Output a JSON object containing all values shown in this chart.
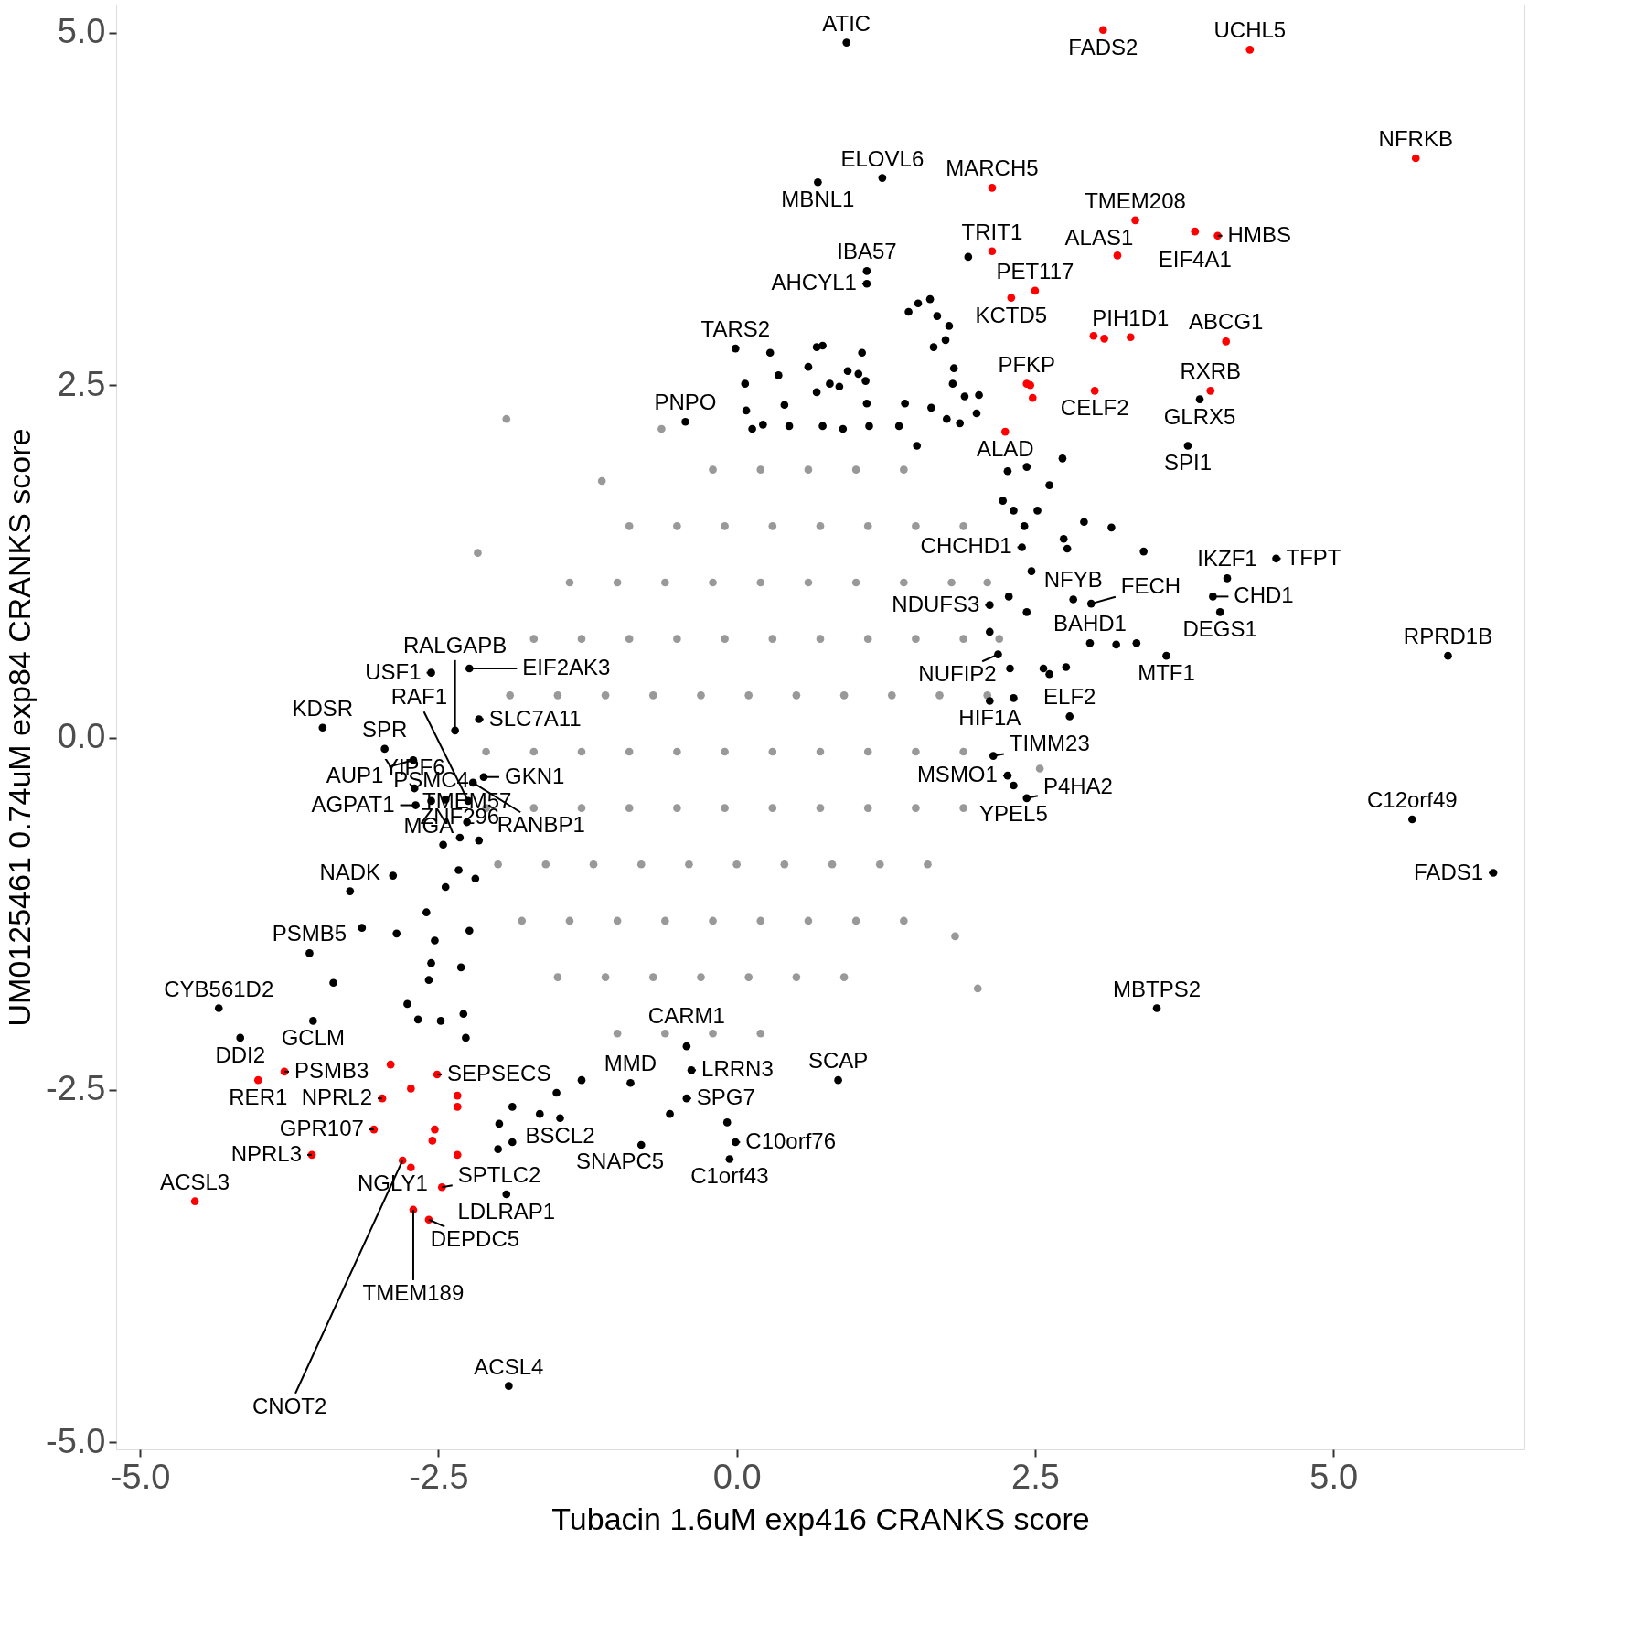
{
  "chart_data": {
    "type": "scatter",
    "xlabel": "Tubacin 1.6uM exp416 CRANKS score",
    "ylabel": "UM0125461 0.74uM exp84 CRANKS score",
    "xlim": [
      -5.2,
      6.6
    ],
    "ylim": [
      -5.05,
      5.2
    ],
    "xticks": [
      {
        "value": -5,
        "label": "-5.0"
      },
      {
        "value": -2.5,
        "label": "-2.5"
      },
      {
        "value": 0,
        "label": "0.0"
      },
      {
        "value": 2.5,
        "label": "2.5"
      },
      {
        "value": 5,
        "label": "5.0"
      }
    ],
    "yticks": [
      {
        "value": -5,
        "label": "-5.0"
      },
      {
        "value": -2.5,
        "label": "-2.5"
      },
      {
        "value": 0,
        "label": "0.0"
      },
      {
        "value": 2.5,
        "label": "2.5"
      },
      {
        "value": 5,
        "label": "5.0"
      }
    ],
    "grid": false,
    "marker": "circle",
    "series": [
      {
        "color": "#999999",
        "x": [
          -0.2,
          0.2,
          0.6,
          1.0,
          1.4,
          -0.9,
          -0.5,
          -0.1,
          0.3,
          0.7,
          1.1,
          1.5,
          1.9,
          -1.4,
          -1.0,
          -0.6,
          -0.2,
          0.2,
          0.6,
          1.0,
          1.4,
          1.8,
          2.1,
          -1.7,
          -1.3,
          -0.9,
          -0.5,
          -0.1,
          0.3,
          0.7,
          1.1,
          1.5,
          1.9,
          2.2,
          -1.9,
          -1.5,
          -1.1,
          -0.7,
          -0.3,
          0.1,
          0.5,
          0.9,
          1.3,
          1.7,
          2.1,
          -2.1,
          -1.7,
          -1.3,
          -0.9,
          -0.5,
          -0.1,
          0.3,
          0.7,
          1.1,
          1.5,
          1.9,
          -2.1,
          -1.7,
          -1.3,
          -0.9,
          -0.5,
          -0.1,
          0.3,
          0.7,
          1.1,
          1.5,
          1.9,
          -2.0,
          -1.6,
          -1.2,
          -0.8,
          -0.4,
          0.0,
          0.4,
          0.8,
          1.2,
          1.6,
          -1.8,
          -1.4,
          -1.0,
          -0.6,
          -0.2,
          0.2,
          0.6,
          1.0,
          1.4,
          -1.5,
          -1.1,
          -0.7,
          -0.3,
          0.1,
          0.5,
          0.9,
          -1.0,
          -0.6,
          -0.2,
          0.2,
          -1.93,
          -2.17,
          2.02,
          2.54,
          1.83,
          -1.13,
          -0.63
        ],
        "values": [
          1.9,
          1.9,
          1.9,
          1.9,
          1.9,
          1.5,
          1.5,
          1.5,
          1.5,
          1.5,
          1.5,
          1.5,
          1.5,
          1.1,
          1.1,
          1.1,
          1.1,
          1.1,
          1.1,
          1.1,
          1.1,
          1.1,
          1.1,
          0.7,
          0.7,
          0.7,
          0.7,
          0.7,
          0.7,
          0.7,
          0.7,
          0.7,
          0.7,
          0.7,
          0.3,
          0.3,
          0.3,
          0.3,
          0.3,
          0.3,
          0.3,
          0.3,
          0.3,
          0.3,
          0.3,
          -0.1,
          -0.1,
          -0.1,
          -0.1,
          -0.1,
          -0.1,
          -0.1,
          -0.1,
          -0.1,
          -0.1,
          -0.1,
          -0.5,
          -0.5,
          -0.5,
          -0.5,
          -0.5,
          -0.5,
          -0.5,
          -0.5,
          -0.5,
          -0.5,
          -0.5,
          -0.9,
          -0.9,
          -0.9,
          -0.9,
          -0.9,
          -0.9,
          -0.9,
          -0.9,
          -0.9,
          -0.9,
          -1.3,
          -1.3,
          -1.3,
          -1.3,
          -1.3,
          -1.3,
          -1.3,
          -1.3,
          -1.3,
          -1.7,
          -1.7,
          -1.7,
          -1.7,
          -1.7,
          -1.7,
          -1.7,
          -2.1,
          -2.1,
          -2.1,
          -2.1,
          2.26,
          1.31,
          -1.78,
          -0.22,
          -1.41,
          1.82,
          2.19
        ]
      },
      {
        "color": "#000000",
        "x": [
          0.92,
          1.22,
          0.68,
          1.09,
          1.09,
          1.94,
          -0.01,
          -0.43,
          3.88,
          3.78,
          4.11,
          4.52,
          3.99,
          2.82,
          2.97,
          4.05,
          3.6,
          5.96,
          2.96,
          2.79,
          2.15,
          2.27,
          2.43,
          2.32,
          5.66,
          6.34,
          3.52,
          0.85,
          -0.01,
          -0.06,
          -0.08,
          -0.42,
          -0.38,
          -0.42,
          -0.8,
          -0.56,
          -1.48,
          -1.93,
          -1.91,
          -4.16,
          -4.34,
          -3.55,
          -3.58,
          -3.24,
          -2.69,
          -2.56,
          -2.7,
          -2.44,
          -2.95,
          -3.47,
          -2.56,
          -2.71,
          -2.24,
          -2.16,
          -2.36,
          -2.12,
          -2.21,
          -2.25,
          -2.26,
          -2.32,
          1.52,
          1.62,
          1.68,
          1.44,
          1.78,
          1.65,
          1.82,
          1.75,
          1.81,
          1.91,
          2.03,
          2.01,
          1.76,
          1.87,
          1.63,
          1.41,
          1.36,
          1.51,
          1.11,
          1.09,
          1.08,
          0.93,
          1.02,
          0.86,
          0.67,
          0.72,
          0.78,
          0.67,
          0.72,
          0.89,
          1.05,
          0.6,
          0.4,
          0.35,
          0.28,
          0.07,
          0.08,
          0.13,
          0.22,
          0.44,
          2.27,
          2.43,
          2.73,
          2.62,
          2.52,
          2.41,
          2.23,
          2.32,
          2.39,
          2.74,
          2.77,
          2.91,
          3.14,
          3.41,
          2.47,
          2.28,
          2.12,
          2.43,
          2.12,
          2.19,
          2.29,
          2.57,
          2.76,
          3.18,
          3.35,
          2.12,
          2.32,
          2.62,
          -3.14,
          -2.85,
          -2.88,
          -2.76,
          -2.67,
          -2.58,
          -2.48,
          -2.27,
          -2.29,
          -2.53,
          -2.56,
          -2.31,
          -2.24,
          -2.6,
          -2.44,
          -2.33,
          -2.19,
          -2.46,
          -2.16,
          -1.65,
          -1.99,
          -2.0,
          -1.88,
          -1.88,
          -1.51,
          -1.3,
          -0.89,
          -3.38
        ],
        "values": [
          4.93,
          3.97,
          3.94,
          3.31,
          3.22,
          3.41,
          2.76,
          2.24,
          2.4,
          2.07,
          1.13,
          1.27,
          1.0,
          0.98,
          0.95,
          0.89,
          0.58,
          0.58,
          0.67,
          0.15,
          -0.13,
          -0.27,
          -0.43,
          -0.34,
          -0.58,
          -0.96,
          -1.92,
          -2.43,
          -2.87,
          -2.99,
          -2.73,
          -2.56,
          -2.36,
          -2.19,
          -2.89,
          -2.67,
          -2.7,
          -3.24,
          -4.6,
          -2.13,
          -1.92,
          -2.01,
          -1.53,
          -1.09,
          -0.48,
          -0.45,
          -0.36,
          -0.44,
          -0.08,
          0.07,
          0.46,
          -0.16,
          0.49,
          0.13,
          0.05,
          -0.28,
          -0.32,
          -0.45,
          -0.6,
          -0.71,
          3.08,
          3.11,
          2.99,
          3.02,
          2.92,
          2.77,
          2.62,
          2.82,
          2.51,
          2.42,
          2.43,
          2.3,
          2.26,
          2.23,
          2.34,
          2.37,
          2.21,
          2.07,
          2.21,
          2.37,
          2.53,
          2.6,
          2.58,
          2.49,
          2.77,
          2.78,
          2.51,
          2.45,
          2.21,
          2.19,
          2.73,
          2.63,
          2.36,
          2.57,
          2.73,
          2.51,
          2.32,
          2.19,
          2.22,
          2.21,
          1.89,
          1.92,
          1.98,
          1.79,
          1.61,
          1.5,
          1.68,
          1.61,
          1.35,
          1.41,
          1.34,
          1.53,
          1.49,
          1.32,
          1.18,
          1.0,
          0.94,
          0.89,
          0.75,
          0.59,
          0.49,
          0.49,
          0.5,
          0.66,
          0.67,
          0.26,
          0.28,
          0.45,
          -1.35,
          -1.39,
          -0.98,
          -1.89,
          -2.0,
          -1.72,
          -2.01,
          -2.13,
          -1.96,
          -1.44,
          -1.6,
          -1.63,
          -1.37,
          -1.24,
          -1.06,
          -0.94,
          -1.0,
          -0.76,
          -0.73,
          -2.67,
          -2.74,
          -2.92,
          -2.87,
          -2.62,
          -2.52,
          -2.43,
          -2.45,
          -1.74
        ]
      },
      {
        "color": "#ff0000",
        "x": [
          3.07,
          4.3,
          5.69,
          2.14,
          3.34,
          3.84,
          4.03,
          2.14,
          3.19,
          2.3,
          2.5,
          2.99,
          3.08,
          3.3,
          4.1,
          2.43,
          2.46,
          2.48,
          3.0,
          3.97,
          2.25,
          -4.01,
          -3.79,
          -2.9,
          -2.51,
          -2.97,
          -2.73,
          -2.34,
          -2.34,
          -3.04,
          -2.53,
          -2.55,
          -3.56,
          -2.34,
          -2.8,
          -2.73,
          -2.47,
          -4.54,
          -2.71,
          -2.58
        ],
        "values": [
          5.02,
          4.88,
          4.11,
          3.9,
          3.67,
          3.59,
          3.56,
          3.45,
          3.42,
          3.12,
          3.17,
          2.85,
          2.83,
          2.84,
          2.81,
          2.51,
          2.5,
          2.41,
          2.46,
          2.46,
          2.17,
          -2.43,
          -2.37,
          -2.32,
          -2.39,
          -2.56,
          -2.49,
          -2.54,
          -2.62,
          -2.78,
          -2.78,
          -2.86,
          -2.96,
          -2.96,
          -3.0,
          -3.05,
          -3.19,
          -3.29,
          -3.35,
          -3.42
        ]
      }
    ],
    "annotations": [
      {
        "text": "ATIC",
        "x": 0.92,
        "y": 4.93
      },
      {
        "text": "FADS2",
        "x": 3.07,
        "y": 5.02
      },
      {
        "text": "UCHL5",
        "x": 4.3,
        "y": 4.88
      },
      {
        "text": "ELOVL6",
        "x": 1.22,
        "y": 3.97
      },
      {
        "text": "NFRKB",
        "x": 5.69,
        "y": 4.11
      },
      {
        "text": "MBNL1",
        "x": 0.68,
        "y": 3.94
      },
      {
        "text": "MARCH5",
        "x": 2.14,
        "y": 3.9
      },
      {
        "text": "TMEM208",
        "x": 3.34,
        "y": 3.67
      },
      {
        "text": "EIF4A1",
        "x": 3.84,
        "y": 3.59
      },
      {
        "text": "IBA57",
        "x": 1.09,
        "y": 3.31
      },
      {
        "text": "TRIT1",
        "x": 2.14,
        "y": 3.45
      },
      {
        "text": "HMBS",
        "x": 4.03,
        "y": 3.56
      },
      {
        "text": "PET117",
        "x": 2.5,
        "y": 3.17
      },
      {
        "text": "ALAS1",
        "x": 3.19,
        "y": 3.42
      },
      {
        "text": "AHCYL1",
        "x": 1.09,
        "y": 3.22
      },
      {
        "text": "KCTD5",
        "x": 2.3,
        "y": 3.12
      },
      {
        "text": "PIH1D1",
        "x": 3.3,
        "y": 2.84
      },
      {
        "text": "TARS2",
        "x": -0.01,
        "y": 2.76
      },
      {
        "text": "PFKP",
        "x": 2.43,
        "y": 2.51
      },
      {
        "text": "ABCG1",
        "x": 4.1,
        "y": 2.81
      },
      {
        "text": "CELF2",
        "x": 3.0,
        "y": 2.46
      },
      {
        "text": "ALAD",
        "x": 2.25,
        "y": 2.17
      },
      {
        "text": "GLRX5",
        "x": 3.88,
        "y": 2.4
      },
      {
        "text": "RXRB",
        "x": 3.97,
        "y": 2.46
      },
      {
        "text": "PNPO",
        "x": -0.43,
        "y": 2.24
      },
      {
        "text": "SPI1",
        "x": 3.78,
        "y": 2.07
      },
      {
        "text": "IKZF1",
        "x": 4.11,
        "y": 1.13
      },
      {
        "text": "CHD1",
        "x": 3.99,
        "y": 1.0
      },
      {
        "text": "TFPT",
        "x": 4.52,
        "y": 1.27
      },
      {
        "text": "CHCHD1",
        "x": 2.39,
        "y": 1.35
      },
      {
        "text": "NFYB",
        "x": 2.82,
        "y": 0.98
      },
      {
        "text": "NDUFS3",
        "x": 2.12,
        "y": 0.94
      },
      {
        "text": "FECH",
        "x": 2.97,
        "y": 0.95
      },
      {
        "text": "RPRD1B",
        "x": 5.96,
        "y": 0.58
      },
      {
        "text": "BAHD1",
        "x": 2.96,
        "y": 0.67
      },
      {
        "text": "NUFIP2",
        "x": 2.19,
        "y": 0.59
      },
      {
        "text": "MTF1",
        "x": 3.6,
        "y": 0.58
      },
      {
        "text": "DEGS1",
        "x": 4.05,
        "y": 0.89
      },
      {
        "text": "HIF1A",
        "x": 2.12,
        "y": 0.26
      },
      {
        "text": "TIMM23",
        "x": 2.15,
        "y": -0.13
      },
      {
        "text": "ELF2",
        "x": 2.79,
        "y": 0.15
      },
      {
        "text": "MSMO1",
        "x": 2.27,
        "y": -0.27
      },
      {
        "text": "C12orf49",
        "x": 5.66,
        "y": -0.58
      },
      {
        "text": "P4HA2",
        "x": 2.43,
        "y": -0.43
      },
      {
        "text": "FADS1",
        "x": 6.34,
        "y": -0.96
      },
      {
        "text": "YPEL5",
        "x": 2.32,
        "y": -0.34
      },
      {
        "text": "EIF2AK3",
        "x": -2.24,
        "y": 0.49
      },
      {
        "text": "USF1",
        "x": -2.56,
        "y": 0.46
      },
      {
        "text": "SLC7A11",
        "x": -2.16,
        "y": 0.13
      },
      {
        "text": "SPR",
        "x": -2.95,
        "y": -0.08
      },
      {
        "text": "RALGAPB",
        "x": -2.36,
        "y": 0.05
      },
      {
        "text": "AUP1",
        "x": -2.71,
        "y": -0.16
      },
      {
        "text": "KDSR",
        "x": -3.47,
        "y": 0.07
      },
      {
        "text": "GKN1",
        "x": -2.12,
        "y": -0.28
      },
      {
        "text": "RANBP1",
        "x": -2.21,
        "y": -0.32
      },
      {
        "text": "MGA",
        "x": -2.44,
        "y": -0.44
      },
      {
        "text": "YIPF6",
        "x": -2.7,
        "y": -0.36
      },
      {
        "text": "RAF1",
        "x": -2.25,
        "y": -0.45
      },
      {
        "text": "AGPAT1",
        "x": -2.69,
        "y": -0.48
      },
      {
        "text": "PSMC4",
        "x": -2.56,
        "y": -0.45
      },
      {
        "text": "TMEM57",
        "x": -2.26,
        "y": -0.6
      },
      {
        "text": "NADK",
        "x": -3.24,
        "y": -1.09
      },
      {
        "text": "ZNF296",
        "x": -2.32,
        "y": -0.71
      },
      {
        "text": "PSMB5",
        "x": -3.58,
        "y": -1.53
      },
      {
        "text": "CYB561D2",
        "x": -4.34,
        "y": -1.92
      },
      {
        "text": "CARM1",
        "x": -0.42,
        "y": -2.19
      },
      {
        "text": "GCLM",
        "x": -3.55,
        "y": -2.01
      },
      {
        "text": "MMD",
        "x": -0.89,
        "y": -2.45
      },
      {
        "text": "DDI2",
        "x": -4.16,
        "y": -2.13
      },
      {
        "text": "LRRN3",
        "x": -0.38,
        "y": -2.36
      },
      {
        "text": "SCAP",
        "x": 0.85,
        "y": -2.43
      },
      {
        "text": "SEPSECS",
        "x": -2.51,
        "y": -2.39
      },
      {
        "text": "RER1",
        "x": -4.01,
        "y": -2.43
      },
      {
        "text": "NPRL2",
        "x": -2.97,
        "y": -2.56
      },
      {
        "text": "SPG7",
        "x": -0.42,
        "y": -2.56
      },
      {
        "text": "MBTPS2",
        "x": 3.52,
        "y": -1.92
      },
      {
        "text": "PSMB3",
        "x": -3.79,
        "y": -2.37
      },
      {
        "text": "GPR107",
        "x": -3.04,
        "y": -2.78
      },
      {
        "text": "C10orf76",
        "x": -0.01,
        "y": -2.87
      },
      {
        "text": "BSCL2",
        "x": -1.48,
        "y": -2.7
      },
      {
        "text": "NPRL3",
        "x": -3.56,
        "y": -2.96
      },
      {
        "text": "CNOT2",
        "x": -2.8,
        "y": -3.0
      },
      {
        "text": "LDLRAP1",
        "x": -1.93,
        "y": -3.24
      },
      {
        "text": "SNAPC5",
        "x": -0.8,
        "y": -2.89
      },
      {
        "text": "C1orf43",
        "x": -0.06,
        "y": -2.99
      },
      {
        "text": "ACSL3",
        "x": -4.54,
        "y": -3.29
      },
      {
        "text": "TMEM189",
        "x": -2.71,
        "y": -3.35
      },
      {
        "text": "SPTLC2",
        "x": -2.47,
        "y": -3.19
      },
      {
        "text": "NGLY1",
        "x": -2.73,
        "y": -3.05
      },
      {
        "text": "DEPDC5",
        "x": -2.58,
        "y": -3.42
      },
      {
        "text": "ACSL4",
        "x": -1.91,
        "y": -4.6
      }
    ]
  }
}
